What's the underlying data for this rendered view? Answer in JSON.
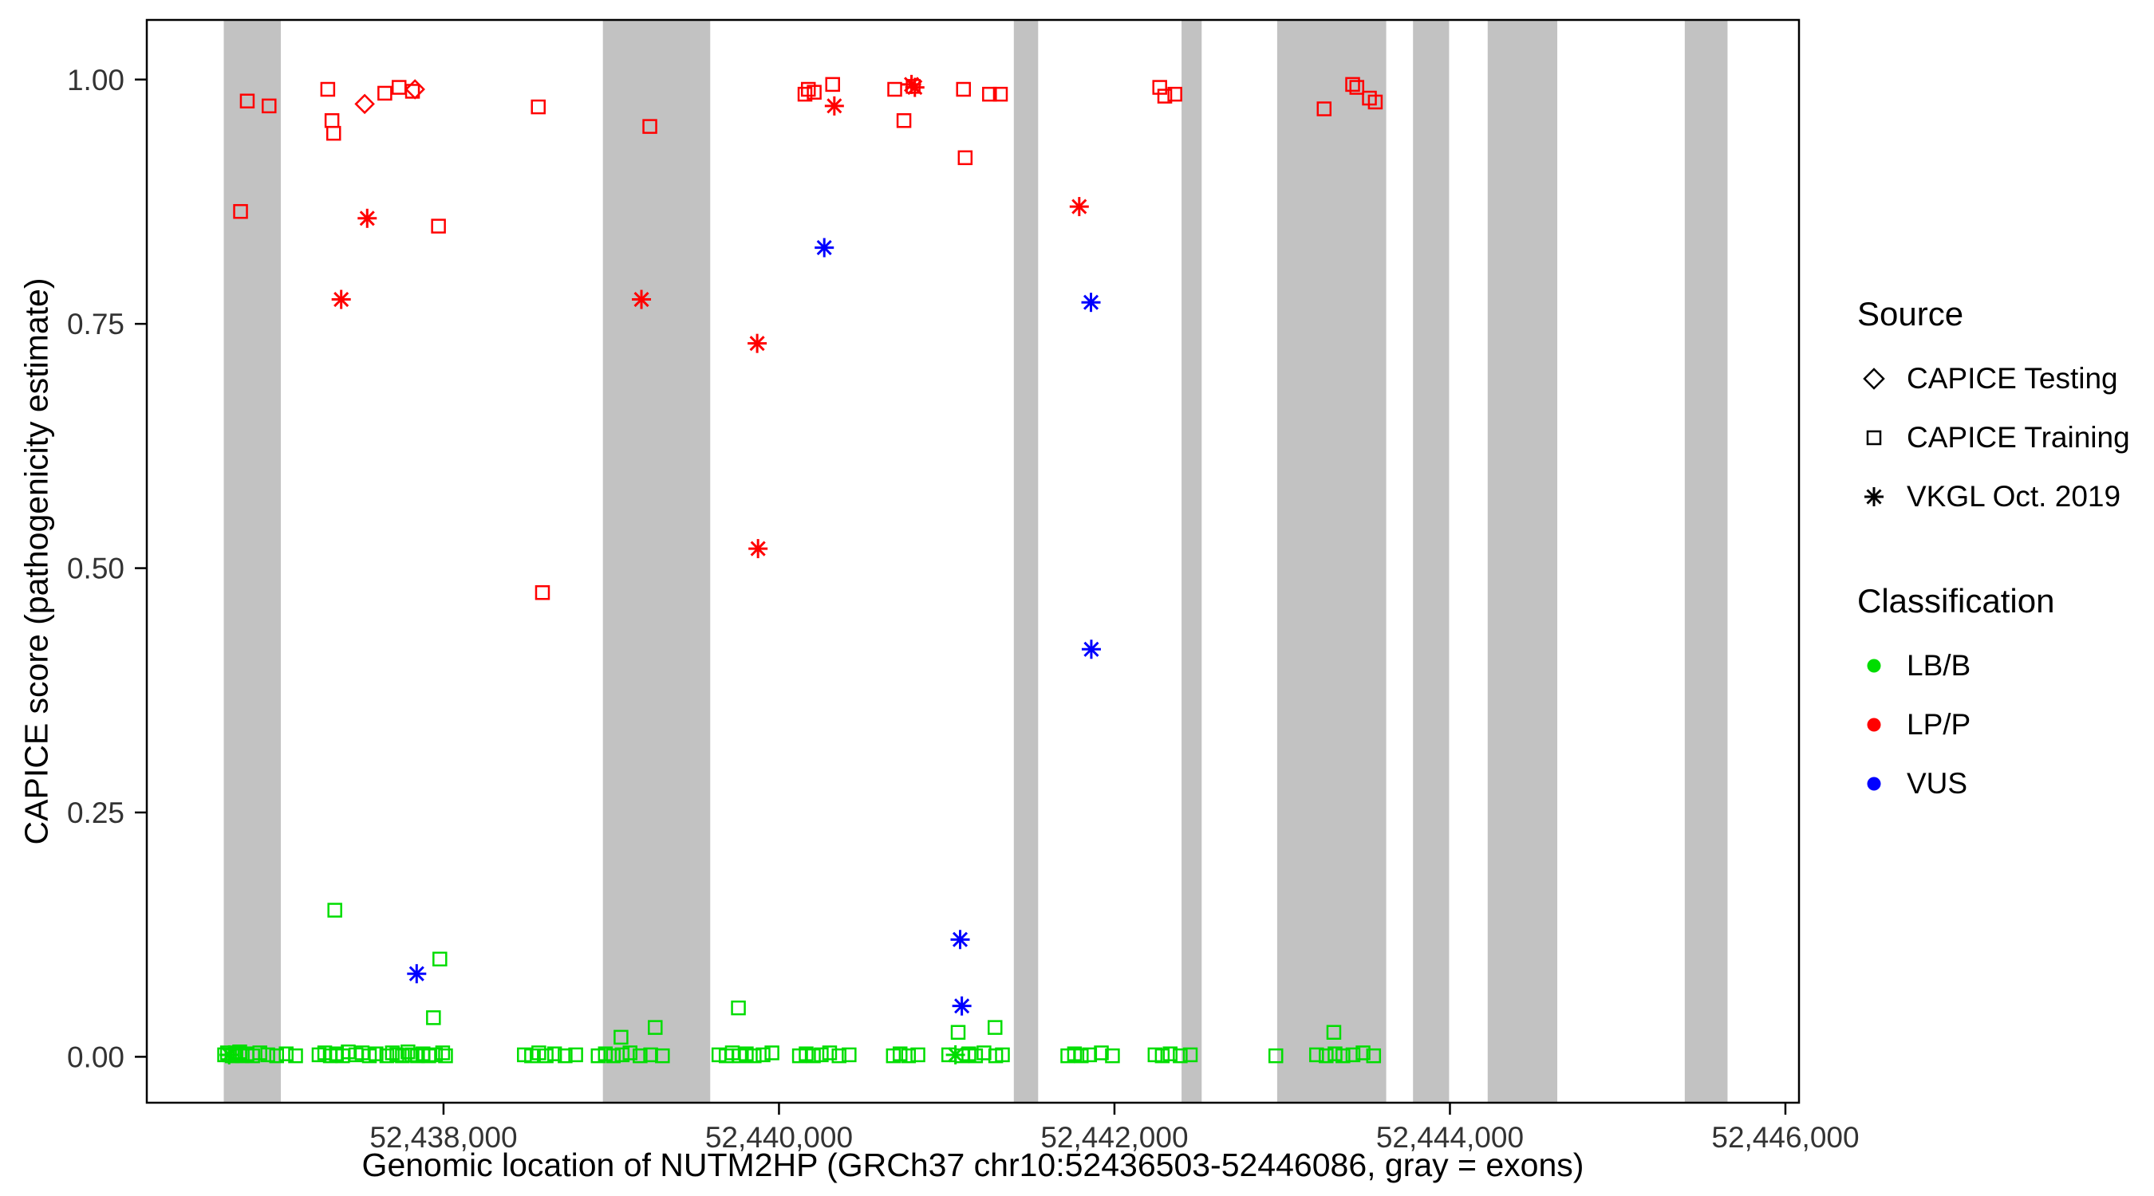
{
  "chart_data": {
    "type": "scatter",
    "title": "",
    "xlabel": "Genomic location of NUTM2HP (GRCh37 chr10:52436503-52446086, gray = exons)",
    "ylabel": "CAPICE score (pathogenicity estimate)",
    "xlim": [
      52436231,
      52446081
    ],
    "ylim": [
      -0.047,
      1.061
    ],
    "grid": false,
    "legend_position": "right",
    "x_ticks": [
      {
        "value": 52438000,
        "label": "52,438,000"
      },
      {
        "value": 52440000,
        "label": "52,440,000"
      },
      {
        "value": 52442000,
        "label": "52,442,000"
      },
      {
        "value": 52444000,
        "label": "52,444,000"
      },
      {
        "value": 52446000,
        "label": "52,446,000"
      }
    ],
    "y_ticks": [
      {
        "value": 0.0,
        "label": "0.00"
      },
      {
        "value": 0.25,
        "label": "0.25"
      },
      {
        "value": 0.5,
        "label": "0.50"
      },
      {
        "value": 0.75,
        "label": "0.75"
      },
      {
        "value": 1.0,
        "label": "1.00"
      }
    ],
    "colors": {
      "LB/B": "#00dd00",
      "LP/P": "#ff0000",
      "VUS": "#0000ff",
      "exon": "#c2c2c2",
      "axis_text": "#333333",
      "panel_border": "#000000"
    },
    "exons": [
      [
        52436690,
        52437030
      ],
      [
        52438950,
        52439590
      ],
      [
        52441400,
        52441545
      ],
      [
        52442400,
        52442520
      ],
      [
        52442970,
        52443620
      ],
      [
        52443780,
        52443995
      ],
      [
        52444225,
        52444640
      ],
      [
        52445400,
        52445655
      ]
    ],
    "series": [
      {
        "name": "LP/P - CAPICE Training",
        "classification": "LP/P",
        "source": "CAPICE Training",
        "symbol": "square",
        "points": [
          [
            52436790,
            0.865
          ],
          [
            52436830,
            0.978
          ],
          [
            52436960,
            0.973
          ],
          [
            52437310,
            0.99
          ],
          [
            52437335,
            0.958
          ],
          [
            52437345,
            0.945
          ],
          [
            52437650,
            0.986
          ],
          [
            52437735,
            0.992
          ],
          [
            52437815,
            0.988
          ],
          [
            52437970,
            0.85
          ],
          [
            52438565,
            0.972
          ],
          [
            52438590,
            0.475
          ],
          [
            52439230,
            0.952
          ],
          [
            52440155,
            0.985
          ],
          [
            52440175,
            0.99
          ],
          [
            52440210,
            0.987
          ],
          [
            52440320,
            0.995
          ],
          [
            52440690,
            0.99
          ],
          [
            52440745,
            0.958
          ],
          [
            52440800,
            0.993
          ],
          [
            52441100,
            0.99
          ],
          [
            52441110,
            0.92
          ],
          [
            52441255,
            0.985
          ],
          [
            52441320,
            0.985
          ],
          [
            52442270,
            0.992
          ],
          [
            52442300,
            0.983
          ],
          [
            52442360,
            0.985
          ],
          [
            52443250,
            0.97
          ],
          [
            52443420,
            0.995
          ],
          [
            52443445,
            0.992
          ],
          [
            52443520,
            0.981
          ],
          [
            52443555,
            0.977
          ]
        ]
      },
      {
        "name": "LP/P - CAPICE Testing",
        "classification": "LP/P",
        "source": "CAPICE Testing",
        "symbol": "diamond",
        "points": [
          [
            52437530,
            0.975
          ],
          [
            52437830,
            0.99
          ]
        ]
      },
      {
        "name": "LP/P - VKGL Oct. 2019",
        "classification": "LP/P",
        "source": "VKGL Oct. 2019",
        "symbol": "asterisk",
        "points": [
          [
            52437390,
            0.775
          ],
          [
            52437545,
            0.858
          ],
          [
            52439180,
            0.775
          ],
          [
            52439870,
            0.73
          ],
          [
            52439875,
            0.52
          ],
          [
            52440330,
            0.973
          ],
          [
            52440790,
            0.995
          ],
          [
            52440810,
            0.992
          ],
          [
            52441790,
            0.87
          ]
        ]
      },
      {
        "name": "VUS - VKGL Oct. 2019",
        "classification": "VUS",
        "source": "VKGL Oct. 2019",
        "symbol": "asterisk",
        "points": [
          [
            52437840,
            0.085
          ],
          [
            52440270,
            0.828
          ],
          [
            52441080,
            0.12
          ],
          [
            52441090,
            0.052
          ],
          [
            52441860,
            0.772
          ],
          [
            52441862,
            0.417
          ]
        ]
      },
      {
        "name": "LB/B - CAPICE Training",
        "classification": "LB/B",
        "source": "CAPICE Training",
        "symbol": "square",
        "points": [
          [
            52436695,
            0.002
          ],
          [
            52436712,
            0.004
          ],
          [
            52436740,
            0.001
          ],
          [
            52436762,
            0.003
          ],
          [
            52436785,
            0.005
          ],
          [
            52436800,
            0.001
          ],
          [
            52436828,
            0.003
          ],
          [
            52436862,
            0.001
          ],
          [
            52436905,
            0.004
          ],
          [
            52436952,
            0.002
          ],
          [
            52437005,
            0.001
          ],
          [
            52437062,
            0.003
          ],
          [
            52437118,
            0.001
          ],
          [
            52437258,
            0.002
          ],
          [
            52437292,
            0.004
          ],
          [
            52437325,
            0.001
          ],
          [
            52437352,
            0.15
          ],
          [
            52437362,
            0.003
          ],
          [
            52437398,
            0.001
          ],
          [
            52437432,
            0.005
          ],
          [
            52437478,
            0.002
          ],
          [
            52437515,
            0.004
          ],
          [
            52437558,
            0.001
          ],
          [
            52437598,
            0.003
          ],
          [
            52437662,
            0.001
          ],
          [
            52437695,
            0.004
          ],
          [
            52437722,
            0.002
          ],
          [
            52437755,
            0.001
          ],
          [
            52437788,
            0.005
          ],
          [
            52437812,
            0.002
          ],
          [
            52437845,
            0.001
          ],
          [
            52437878,
            0.003
          ],
          [
            52437912,
            0.001
          ],
          [
            52437940,
            0.04
          ],
          [
            52437952,
            0.002
          ],
          [
            52437978,
            0.1
          ],
          [
            52437995,
            0.004
          ],
          [
            52438012,
            0.001
          ],
          [
            52438482,
            0.002
          ],
          [
            52438525,
            0.001
          ],
          [
            52438568,
            0.004
          ],
          [
            52438612,
            0.001
          ],
          [
            52438662,
            0.003
          ],
          [
            52438725,
            0.001
          ],
          [
            52438788,
            0.002
          ],
          [
            52438922,
            0.001
          ],
          [
            52438965,
            0.003
          ],
          [
            52439012,
            0.001
          ],
          [
            52439058,
            0.02
          ],
          [
            52439065,
            0.002
          ],
          [
            52439112,
            0.004
          ],
          [
            52439172,
            0.001
          ],
          [
            52439235,
            0.002
          ],
          [
            52439262,
            0.03
          ],
          [
            52439305,
            0.001
          ],
          [
            52439642,
            0.002
          ],
          [
            52439685,
            0.001
          ],
          [
            52439722,
            0.004
          ],
          [
            52439758,
            0.05
          ],
          [
            52439765,
            0.001
          ],
          [
            52439805,
            0.003
          ],
          [
            52439852,
            0.001
          ],
          [
            52439905,
            0.002
          ],
          [
            52439958,
            0.004
          ],
          [
            52440122,
            0.001
          ],
          [
            52440162,
            0.003
          ],
          [
            52440205,
            0.001
          ],
          [
            52440252,
            0.002
          ],
          [
            52440302,
            0.004
          ],
          [
            52440358,
            0.001
          ],
          [
            52440418,
            0.002
          ],
          [
            52440682,
            0.001
          ],
          [
            52440722,
            0.003
          ],
          [
            52440772,
            0.001
          ],
          [
            52440828,
            0.002
          ],
          [
            52441012,
            0.002
          ],
          [
            52441068,
            0.025
          ],
          [
            52441092,
            0.001
          ],
          [
            52441132,
            0.003
          ],
          [
            52441172,
            0.001
          ],
          [
            52441222,
            0.004
          ],
          [
            52441288,
            0.03
          ],
          [
            52441292,
            0.001
          ],
          [
            52441332,
            0.002
          ],
          [
            52441722,
            0.001
          ],
          [
            52441762,
            0.003
          ],
          [
            52441802,
            0.001
          ],
          [
            52441852,
            0.002
          ],
          [
            52441922,
            0.004
          ],
          [
            52441988,
            0.001
          ],
          [
            52442242,
            0.002
          ],
          [
            52442285,
            0.001
          ],
          [
            52442332,
            0.003
          ],
          [
            52442392,
            0.001
          ],
          [
            52442452,
            0.002
          ],
          [
            52442962,
            0.001
          ],
          [
            52443205,
            0.002
          ],
          [
            52443262,
            0.001
          ],
          [
            52443308,
            0.025
          ],
          [
            52443315,
            0.003
          ],
          [
            52443362,
            0.001
          ],
          [
            52443422,
            0.002
          ],
          [
            52443482,
            0.004
          ],
          [
            52443545,
            0.001
          ]
        ]
      },
      {
        "name": "LB/B - VKGL Oct. 2019",
        "classification": "LB/B",
        "source": "VKGL Oct. 2019",
        "symbol": "asterisk",
        "points": [
          [
            52436722,
            0.002
          ],
          [
            52441052,
            0.002
          ]
        ]
      }
    ]
  },
  "legend": {
    "source_title": "Source",
    "source_items": [
      {
        "label": "CAPICE Testing",
        "symbol": "diamond"
      },
      {
        "label": "CAPICE Training",
        "symbol": "square"
      },
      {
        "label": "VKGL Oct. 2019",
        "symbol": "asterisk"
      }
    ],
    "classification_title": "Classification",
    "classification_items": [
      {
        "label": "LB/B",
        "color": "#00dd00"
      },
      {
        "label": "LP/P",
        "color": "#ff0000"
      },
      {
        "label": "VUS",
        "color": "#0000ff"
      }
    ]
  }
}
